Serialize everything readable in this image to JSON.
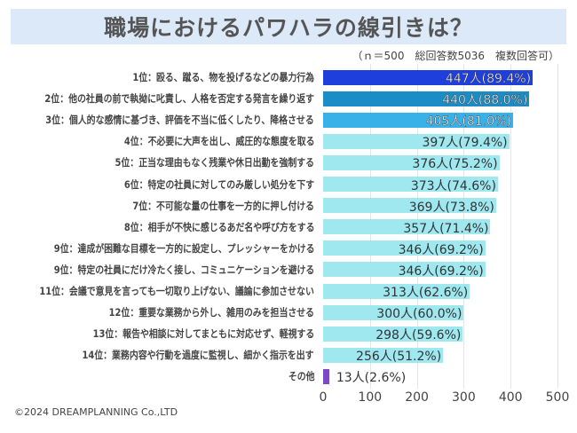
{
  "chart_data": {
    "type": "bar",
    "orientation": "horizontal",
    "title": "職場におけるパワハラの線引きは？",
    "note": "（ｎ＝500　総回答数5036　複数回答可）",
    "categories": [
      "1位：殴る、蹴る、物を投げるなどの暴力行為",
      "2位：他の社員の前で執拗に叱責し、人格を否定する発言を繰り返す",
      "3位：個人的な感情に基づき、評価を不当に低くしたり、降格させる",
      "4位：不必要に大声を出し、威圧的な態度を取る",
      "5位：正当な理由もなく残業や休日出勤を強制する",
      "6位：特定の社員に対してのみ厳しい処分を下す",
      "7位：不可能な量の仕事を一方的に押し付ける",
      "8位：相手が不快に感じるあだ名や呼び方をする",
      "9位：達成が困難な目標を一方的に設定し、プレッシャーをかける",
      "9位：特定の社員にだけ冷たく接し、コミュニケーションを避ける",
      "11位：会議で意見を言っても一切取り上げない、議論に参加させない",
      "12位：重要な業務から外し、雑用のみを担当させる",
      "13位：報告や相談に対してまともに対応せず、軽視する",
      "14位：業務内容や行動を過度に監視し、細かく指示を出す",
      "その他"
    ],
    "values": [
      447,
      440,
      405,
      397,
      376,
      373,
      369,
      357,
      346,
      346,
      313,
      300,
      298,
      256,
      13
    ],
    "data_labels": [
      "447人(89.4%)",
      "440人(88.0%)",
      "405人(81.0%)",
      "397人(79.4%)",
      "376人(75.2%)",
      "373人(74.6%)",
      "369人(73.8%)",
      "357人(71.4%)",
      "346人(69.2%)",
      "346人(69.2%)",
      "313人(62.6%)",
      "300人(60.0%)",
      "298人(59.6%)",
      "256人(51.2%)",
      "13人(2.6%)"
    ],
    "colors": [
      "#1f3fdc",
      "#1a8cc6",
      "#38b0e8",
      "#9fe8f0",
      "#9fe8f0",
      "#9fe8f0",
      "#9fe8f0",
      "#9fe8f0",
      "#9fe8f0",
      "#9fe8f0",
      "#9fe8f0",
      "#9fe8f0",
      "#9fe8f0",
      "#9fe8f0",
      "#7a4bc4"
    ],
    "xlim": [
      0,
      500
    ],
    "xticks": [
      "0",
      "100",
      "200",
      "300",
      "400",
      "500"
    ],
    "grid": true,
    "legend": "none"
  },
  "footer": {
    "copyright": "©2024 DREAMPLANNING Co.,LTD"
  }
}
